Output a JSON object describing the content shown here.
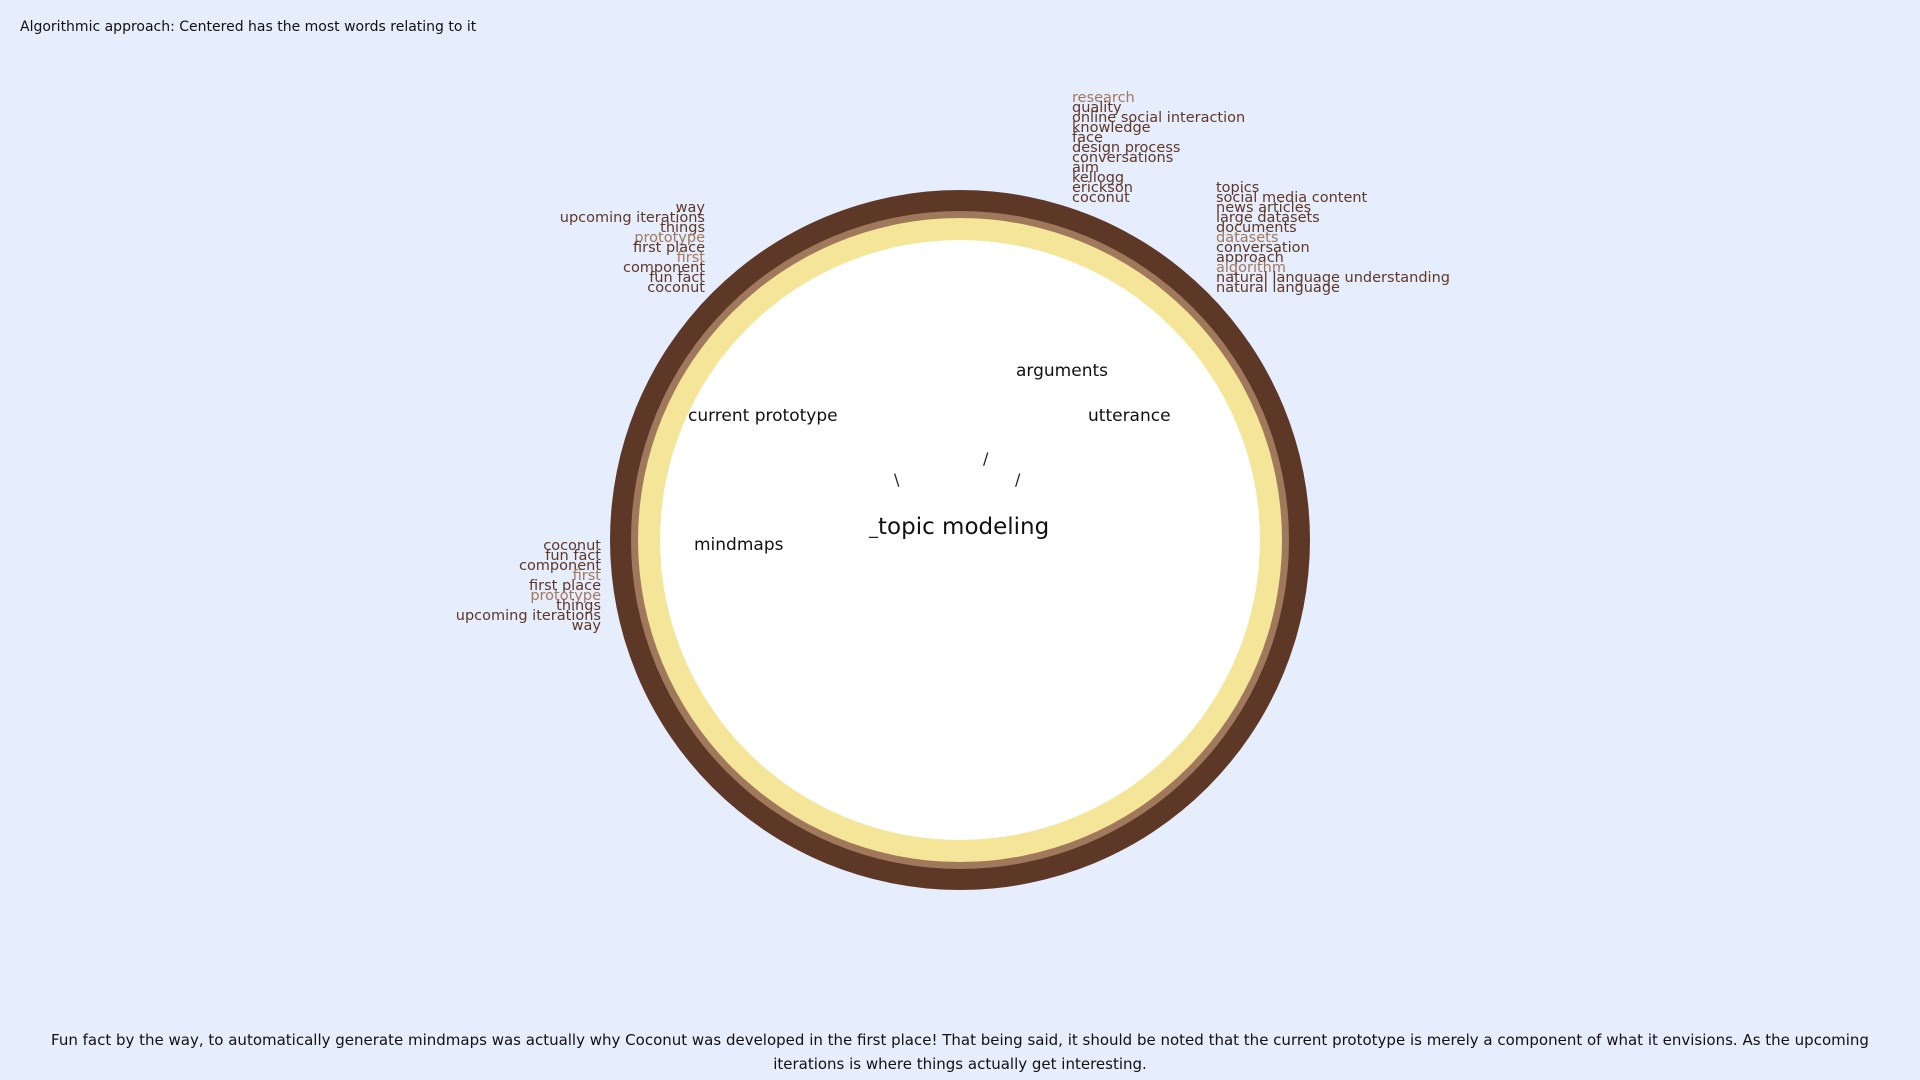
{
  "header": {
    "text": "Algorithmic approach: Centered has the most words relating to it"
  },
  "diagram": {
    "center": "topic modeling",
    "nodes": {
      "arguments": "arguments",
      "utterance": "utterance",
      "current_prototype": "current prototype",
      "mindmaps": "mindmaps"
    },
    "connectors": {
      "underscore": "_",
      "slash_top": "/",
      "slash_right": "/",
      "backslash_left": "\\"
    },
    "colors": {
      "background": "#e6edfc",
      "ring_outer": "#5e3827",
      "ring_mid": "#a0785c",
      "ring_band": "#f4e598",
      "word_primary": "#5e3827",
      "word_highlight": "#a0785c"
    },
    "word_lists": {
      "top_center": [
        "research",
        "quality",
        "online social interaction",
        "knowledge",
        "face",
        "design process",
        "conversations",
        "aim",
        "kellogg",
        "erickson",
        "coconut"
      ],
      "top_right": [
        "topics",
        "social media content",
        "news articles",
        "large datasets",
        "documents",
        "datasets",
        "conversation",
        "approach",
        "algorithm",
        "natural language understanding",
        "natural language"
      ],
      "top_left": [
        "way",
        "upcoming iterations",
        "things",
        "prototype",
        "first place",
        "first",
        "component",
        "fun fact",
        "coconut"
      ],
      "bottom_left": [
        "coconut",
        "fun fact",
        "component",
        "first",
        "first place",
        "prototype",
        "things",
        "upcoming iterations",
        "way"
      ]
    }
  },
  "footer": {
    "text": "Fun fact by the way, to automatically generate mindmaps was actually why Coconut was developed in the first place! That being said, it should be noted that the current prototype is merely a component of what it envisions. As the upcoming iterations is where things actually get interesting."
  }
}
